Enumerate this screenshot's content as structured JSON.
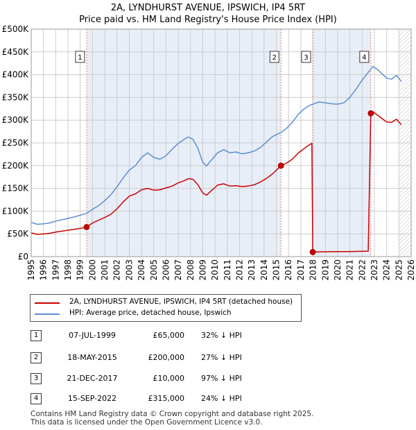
{
  "title_line1": "2A, LYNDHURST AVENUE, IPSWICH, IP4 5RT",
  "title_line2": "Price paid vs. HM Land Registry's House Price Index (HPI)",
  "colors": {
    "price_line": "#cc0000",
    "hpi_line": "#5b8fd0",
    "shade": "#e8eef8",
    "marker_vline": "#e88080",
    "grid": "#cccccc"
  },
  "chart_data": {
    "type": "line",
    "title": "Price paid vs. HM Land Registry's House Price Index (HPI)",
    "xlim": [
      1995,
      2026
    ],
    "ylim": [
      0,
      500000
    ],
    "y_ticks": [
      0,
      50000,
      100000,
      150000,
      200000,
      250000,
      300000,
      350000,
      400000,
      450000,
      500000
    ],
    "y_tick_labels": [
      "£0",
      "£50K",
      "£100K",
      "£150K",
      "£200K",
      "£250K",
      "£300K",
      "£350K",
      "£400K",
      "£450K",
      "£500K"
    ],
    "x_ticks": [
      "1995",
      "1996",
      "1997",
      "1998",
      "1999",
      "2000",
      "2001",
      "2002",
      "2003",
      "2004",
      "2005",
      "2006",
      "2007",
      "2008",
      "2009",
      "2010",
      "2011",
      "2012",
      "2013",
      "2014",
      "2015",
      "2016",
      "2017",
      "2018",
      "2019",
      "2020",
      "2021",
      "2022",
      "2023",
      "2024",
      "2025",
      "2026"
    ],
    "shaded_ranges": [
      [
        1999.52,
        2015.38
      ],
      [
        2017.97,
        2022.71
      ]
    ],
    "hatched_after": 2025.0,
    "series": [
      {
        "name": "2A, LYNDHURST AVENUE, IPSWICH, IP4 5RT (detached house)",
        "color": "#cc0000",
        "points": [
          [
            1995.0,
            52000
          ],
          [
            1995.5,
            49000
          ],
          [
            1996.0,
            50000
          ],
          [
            1996.5,
            51000
          ],
          [
            1997.0,
            54000
          ],
          [
            1997.5,
            56000
          ],
          [
            1998.0,
            58000
          ],
          [
            1998.5,
            60000
          ],
          [
            1999.0,
            62000
          ],
          [
            1999.52,
            65000
          ],
          [
            2000.0,
            74000
          ],
          [
            2000.5,
            80000
          ],
          [
            2001.0,
            86000
          ],
          [
            2001.5,
            93000
          ],
          [
            2002.0,
            105000
          ],
          [
            2002.5,
            120000
          ],
          [
            2003.0,
            133000
          ],
          [
            2003.5,
            138000
          ],
          [
            2004.0,
            147000
          ],
          [
            2004.5,
            150000
          ],
          [
            2005.0,
            146000
          ],
          [
            2005.5,
            147000
          ],
          [
            2006.0,
            151000
          ],
          [
            2006.5,
            155000
          ],
          [
            2007.0,
            162000
          ],
          [
            2007.5,
            167000
          ],
          [
            2007.8,
            171000
          ],
          [
            2008.2,
            170000
          ],
          [
            2008.6,
            158000
          ],
          [
            2009.0,
            140000
          ],
          [
            2009.3,
            135000
          ],
          [
            2009.7,
            145000
          ],
          [
            2010.2,
            157000
          ],
          [
            2010.7,
            160000
          ],
          [
            2011.2,
            155000
          ],
          [
            2011.7,
            156000
          ],
          [
            2012.2,
            154000
          ],
          [
            2012.7,
            155000
          ],
          [
            2013.2,
            158000
          ],
          [
            2013.7,
            164000
          ],
          [
            2014.2,
            172000
          ],
          [
            2014.7,
            182000
          ],
          [
            2015.38,
            200000
          ],
          [
            2015.8,
            205000
          ],
          [
            2016.3,
            214000
          ],
          [
            2016.8,
            228000
          ],
          [
            2017.2,
            236000
          ],
          [
            2017.6,
            244000
          ],
          [
            2017.9,
            249000
          ],
          [
            2017.97,
            10000
          ],
          [
            2018.5,
            10500
          ],
          [
            2019.5,
            10800
          ],
          [
            2020.5,
            11000
          ],
          [
            2021.5,
            11500
          ],
          [
            2022.5,
            12000
          ],
          [
            2022.71,
            315000
          ],
          [
            2022.9,
            318000
          ],
          [
            2023.3,
            310000
          ],
          [
            2023.7,
            302000
          ],
          [
            2024.0,
            296000
          ],
          [
            2024.4,
            295000
          ],
          [
            2024.8,
            302000
          ],
          [
            2025.2,
            290000
          ]
        ]
      },
      {
        "name": "HPI: Average price, detached house, Ipswich",
        "color": "#5b8fd0",
        "points": [
          [
            1995.0,
            75000
          ],
          [
            1995.5,
            71000
          ],
          [
            1996.0,
            72000
          ],
          [
            1996.5,
            74000
          ],
          [
            1997.0,
            78000
          ],
          [
            1997.5,
            81000
          ],
          [
            1998.0,
            84000
          ],
          [
            1998.5,
            87000
          ],
          [
            1999.0,
            91000
          ],
          [
            1999.52,
            95000
          ],
          [
            2000.0,
            104000
          ],
          [
            2000.5,
            112000
          ],
          [
            2001.0,
            123000
          ],
          [
            2001.5,
            136000
          ],
          [
            2002.0,
            153000
          ],
          [
            2002.5,
            173000
          ],
          [
            2003.0,
            190000
          ],
          [
            2003.5,
            200000
          ],
          [
            2004.0,
            218000
          ],
          [
            2004.5,
            228000
          ],
          [
            2005.0,
            218000
          ],
          [
            2005.5,
            214000
          ],
          [
            2006.0,
            222000
          ],
          [
            2006.5,
            236000
          ],
          [
            2007.0,
            249000
          ],
          [
            2007.5,
            258000
          ],
          [
            2007.8,
            263000
          ],
          [
            2008.2,
            258000
          ],
          [
            2008.6,
            238000
          ],
          [
            2009.0,
            207000
          ],
          [
            2009.3,
            199000
          ],
          [
            2009.7,
            212000
          ],
          [
            2010.2,
            228000
          ],
          [
            2010.7,
            235000
          ],
          [
            2011.2,
            228000
          ],
          [
            2011.7,
            230000
          ],
          [
            2012.2,
            226000
          ],
          [
            2012.7,
            228000
          ],
          [
            2013.2,
            232000
          ],
          [
            2013.7,
            240000
          ],
          [
            2014.2,
            252000
          ],
          [
            2014.7,
            264000
          ],
          [
            2015.38,
            273000
          ],
          [
            2015.8,
            281000
          ],
          [
            2016.3,
            295000
          ],
          [
            2016.8,
            313000
          ],
          [
            2017.2,
            323000
          ],
          [
            2017.6,
            331000
          ],
          [
            2017.97,
            335000
          ],
          [
            2018.5,
            340000
          ],
          [
            2019.0,
            338000
          ],
          [
            2019.5,
            336000
          ],
          [
            2020.0,
            335000
          ],
          [
            2020.5,
            338000
          ],
          [
            2021.0,
            350000
          ],
          [
            2021.5,
            368000
          ],
          [
            2022.0,
            388000
          ],
          [
            2022.5,
            405000
          ],
          [
            2022.71,
            412000
          ],
          [
            2022.9,
            418000
          ],
          [
            2023.3,
            410000
          ],
          [
            2023.7,
            400000
          ],
          [
            2024.0,
            392000
          ],
          [
            2024.4,
            390000
          ],
          [
            2024.8,
            398000
          ],
          [
            2025.2,
            385000
          ]
        ]
      }
    ],
    "markers": [
      {
        "label": "1",
        "x": 1999.52,
        "y": 65000
      },
      {
        "label": "2",
        "x": 2015.38,
        "y": 200000
      },
      {
        "label": "3",
        "x": 2017.97,
        "y": 10000
      },
      {
        "label": "4",
        "x": 2022.71,
        "y": 315000
      }
    ]
  },
  "legend": {
    "price_label": "2A, LYNDHURST AVENUE, IPSWICH, IP4 5RT (detached house)",
    "hpi_label": "HPI: Average price, detached house, Ipswich"
  },
  "transactions": [
    {
      "num": "1",
      "date": "07-JUL-1999",
      "price": "£65,000",
      "hpi": "32% ↓ HPI"
    },
    {
      "num": "2",
      "date": "18-MAY-2015",
      "price": "£200,000",
      "hpi": "27% ↓ HPI"
    },
    {
      "num": "3",
      "date": "21-DEC-2017",
      "price": "£10,000",
      "hpi": "97% ↓ HPI"
    },
    {
      "num": "4",
      "date": "15-SEP-2022",
      "price": "£315,000",
      "hpi": "24% ↓ HPI"
    }
  ],
  "footer_line1": "Contains HM Land Registry data © Crown copyright and database right 2025.",
  "footer_line2": "This data is licensed under the Open Government Licence v3.0."
}
